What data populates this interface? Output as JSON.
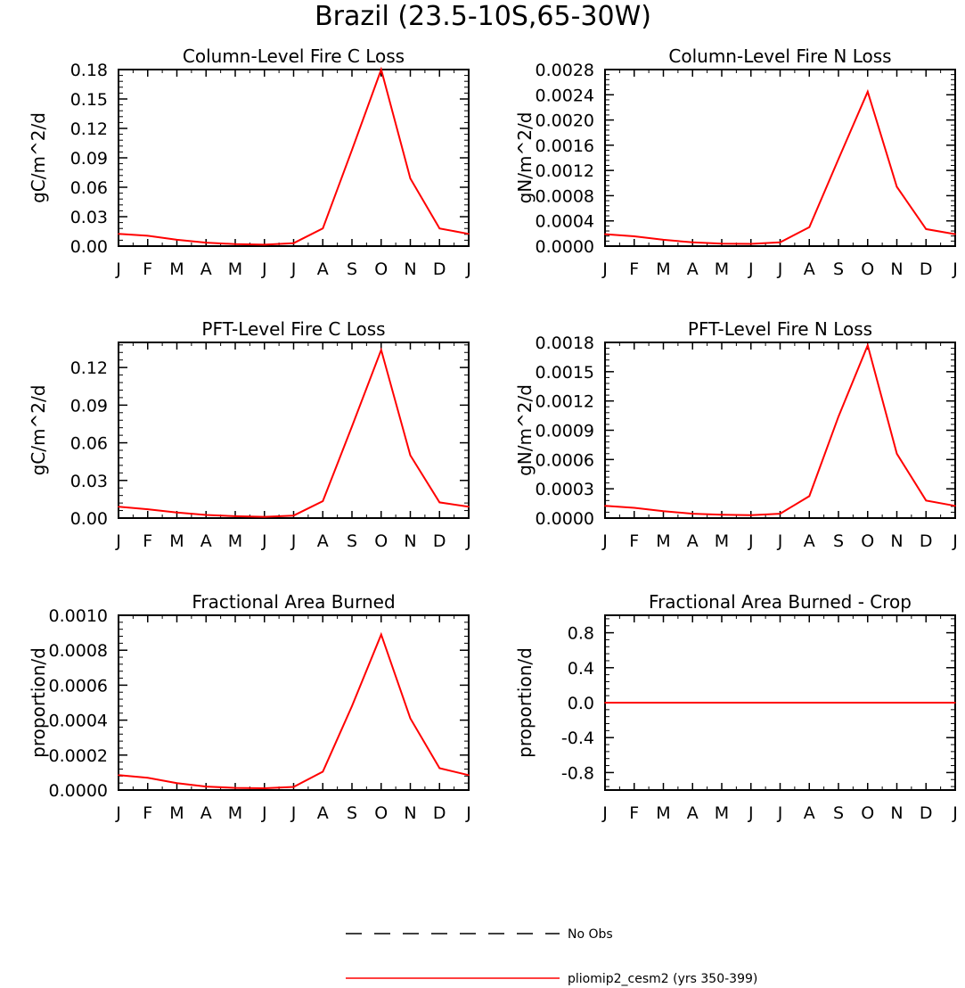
{
  "figure": {
    "title": "Brazil (23.5-10S,65-30W)"
  },
  "months": [
    "J",
    "F",
    "M",
    "A",
    "M",
    "J",
    "J",
    "A",
    "S",
    "O",
    "N",
    "D",
    "J"
  ],
  "legend": {
    "items": [
      {
        "label": "No Obs",
        "style": "dashed",
        "color": "#000000"
      },
      {
        "label": "pliomip2_cesm2 (yrs 350-399)",
        "style": "solid",
        "color": "#ff0000"
      }
    ]
  },
  "chart_data": [
    {
      "type": "line",
      "title": "Column-Level Fire C Loss",
      "ylabel": "gC/m^2/d",
      "categories": [
        "J",
        "F",
        "M",
        "A",
        "M",
        "J",
        "J",
        "A",
        "S",
        "O",
        "N",
        "D",
        "J"
      ],
      "ylim": [
        0,
        0.18
      ],
      "yticks": [
        "0.00",
        "0.03",
        "0.06",
        "0.09",
        "0.12",
        "0.15",
        "0.18"
      ],
      "series": [
        {
          "name": "pliomip2_cesm2 (yrs 350-399)",
          "color": "#ff0000",
          "values": [
            0.0125,
            0.0105,
            0.0065,
            0.0035,
            0.002,
            0.0015,
            0.003,
            0.018,
            0.098,
            0.18,
            0.069,
            0.018,
            0.0125
          ]
        }
      ]
    },
    {
      "type": "line",
      "title": "Column-Level Fire N Loss",
      "ylabel": "gN/m^2/d",
      "categories": [
        "J",
        "F",
        "M",
        "A",
        "M",
        "J",
        "J",
        "A",
        "S",
        "O",
        "N",
        "D",
        "J"
      ],
      "ylim": [
        0,
        0.0028
      ],
      "yticks": [
        "0.0000",
        "0.0004",
        "0.0008",
        "0.0012",
        "0.0016",
        "0.0020",
        "0.0024",
        "0.0028"
      ],
      "series": [
        {
          "name": "pliomip2_cesm2 (yrs 350-399)",
          "color": "#ff0000",
          "values": [
            0.00019,
            0.000155,
            0.0001,
            6e-05,
            4e-05,
            3.5e-05,
            6e-05,
            0.0003,
            0.00138,
            0.00245,
            0.00094,
            0.00027,
            0.00019
          ]
        }
      ]
    },
    {
      "type": "line",
      "title": "PFT-Level Fire C Loss",
      "ylabel": "gC/m^2/d",
      "categories": [
        "J",
        "F",
        "M",
        "A",
        "M",
        "J",
        "J",
        "A",
        "S",
        "O",
        "N",
        "D",
        "J"
      ],
      "ylim": [
        0,
        0.14
      ],
      "yticks": [
        "0.00",
        "0.03",
        "0.06",
        "0.09",
        "0.12"
      ],
      "series": [
        {
          "name": "pliomip2_cesm2 (yrs 350-399)",
          "color": "#ff0000",
          "values": [
            0.009,
            0.007,
            0.0045,
            0.0025,
            0.0015,
            0.001,
            0.002,
            0.0135,
            0.073,
            0.134,
            0.05,
            0.0125,
            0.009
          ]
        }
      ]
    },
    {
      "type": "line",
      "title": "PFT-Level Fire N Loss",
      "ylabel": "gN/m^2/d",
      "categories": [
        "J",
        "F",
        "M",
        "A",
        "M",
        "J",
        "J",
        "A",
        "S",
        "O",
        "N",
        "D",
        "J"
      ],
      "ylim": [
        0,
        0.0018
      ],
      "yticks": [
        "0.0000",
        "0.0003",
        "0.0006",
        "0.0009",
        "0.0012",
        "0.0015",
        "0.0018"
      ],
      "series": [
        {
          "name": "pliomip2_cesm2 (yrs 350-399)",
          "color": "#ff0000",
          "values": [
            0.000125,
            0.000105,
            7e-05,
            4.5e-05,
            3.5e-05,
            3e-05,
            4.5e-05,
            0.000225,
            0.00104,
            0.00177,
            0.00066,
            0.00018,
            0.000125
          ]
        }
      ]
    },
    {
      "type": "line",
      "title": "Fractional Area Burned",
      "ylabel": "proportion/d",
      "categories": [
        "J",
        "F",
        "M",
        "A",
        "M",
        "J",
        "J",
        "A",
        "S",
        "O",
        "N",
        "D",
        "J"
      ],
      "ylim": [
        0,
        0.001
      ],
      "yticks": [
        "0.0000",
        "0.0002",
        "0.0004",
        "0.0006",
        "0.0008",
        "0.0010"
      ],
      "series": [
        {
          "name": "pliomip2_cesm2 (yrs 350-399)",
          "color": "#ff0000",
          "values": [
            8.5e-05,
            7e-05,
            4e-05,
            2e-05,
            1.2e-05,
            1e-05,
            1.8e-05,
            0.000105,
            0.00048,
            0.00089,
            0.00041,
            0.000125,
            8.5e-05
          ]
        }
      ]
    },
    {
      "type": "line",
      "title": "Fractional Area Burned - Crop",
      "ylabel": "proportion/d",
      "categories": [
        "J",
        "F",
        "M",
        "A",
        "M",
        "J",
        "J",
        "A",
        "S",
        "O",
        "N",
        "D",
        "J"
      ],
      "ylim": [
        -1,
        1
      ],
      "yticks": [
        "-0.8",
        "-0.4",
        "0.0",
        "0.4",
        "0.8"
      ],
      "ytick_values": [
        -0.8,
        -0.4,
        0.0,
        0.4,
        0.8
      ],
      "series": [
        {
          "name": "pliomip2_cesm2 (yrs 350-399)",
          "color": "#ff0000",
          "values": [
            0,
            0,
            0,
            0,
            0,
            0,
            0,
            0,
            0,
            0,
            0,
            0,
            0
          ]
        }
      ]
    }
  ]
}
